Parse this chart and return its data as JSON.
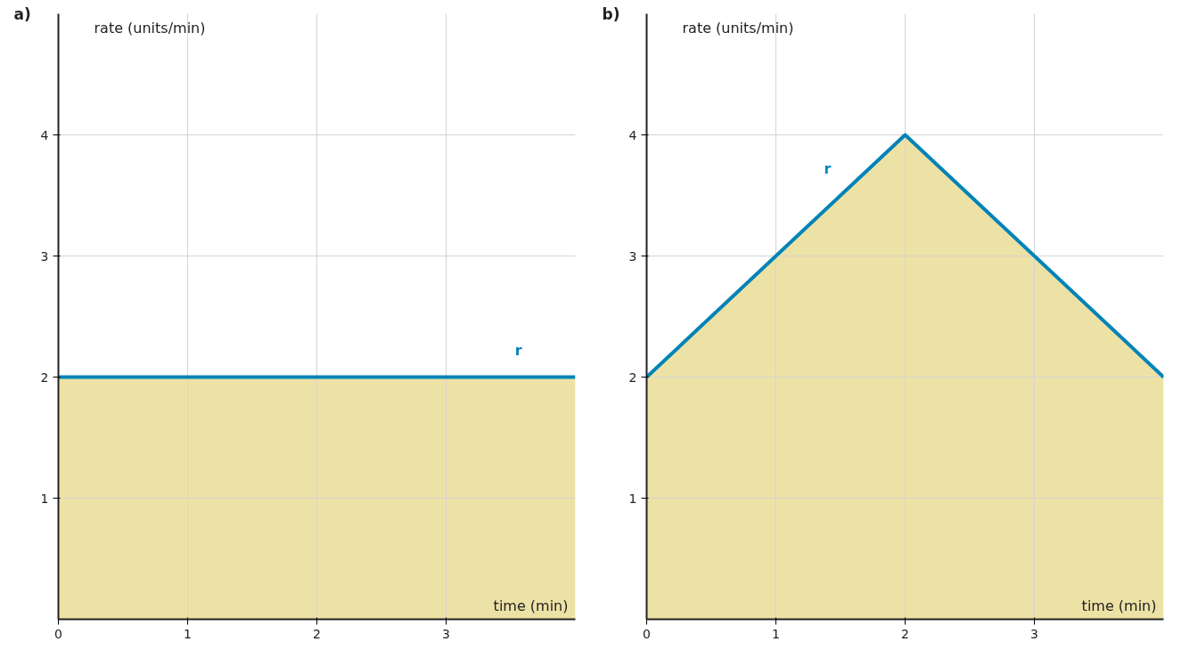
{
  "chart_data": [
    {
      "type": "area",
      "title": "a)",
      "xlabel": "time (min)",
      "ylabel": "rate (units/min)",
      "x": [
        0,
        4
      ],
      "series": [
        {
          "color": "#ede2a5",
          "values": [
            2,
            2
          ]
        },
        {
          "type": "line",
          "name": "r",
          "color": "#0083b8",
          "values": [
            2,
            2
          ]
        }
      ],
      "xlim": [
        0,
        4
      ],
      "ylim": [
        0,
        5
      ],
      "xticks": [
        0,
        1,
        2,
        3
      ],
      "yticks": [
        1,
        2,
        3,
        4
      ],
      "grid": true
    },
    {
      "type": "area",
      "title": "b)",
      "xlabel": "time (min)",
      "ylabel": "rate (units/min)",
      "x": [
        0,
        2,
        4
      ],
      "series": [
        {
          "color": "#ede2a5",
          "values": [
            2,
            4,
            2
          ]
        },
        {
          "type": "line",
          "name": "r",
          "color": "#0083b8",
          "values": [
            2,
            4,
            2
          ]
        }
      ],
      "xlim": [
        0,
        4
      ],
      "ylim": [
        0,
        5
      ],
      "xticks": [
        0,
        1,
        2,
        3
      ],
      "yticks": [
        1,
        2,
        3,
        4
      ],
      "grid": true
    }
  ]
}
